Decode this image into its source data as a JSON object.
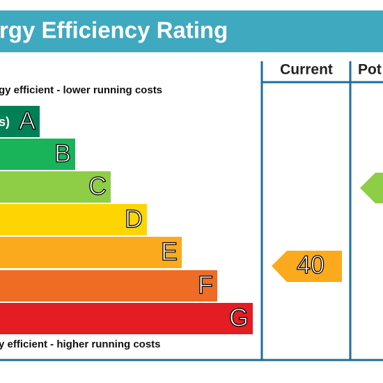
{
  "header": {
    "title": "rgy Efficiency Rating"
  },
  "columns": {
    "current": "Current",
    "potential": "Pot"
  },
  "top_note": "gy efficient - lower running costs",
  "bottom_note": "y efficient - higher running costs",
  "bands": [
    {
      "letter": "A",
      "range": "s)",
      "color": "#008054"
    },
    {
      "letter": "B",
      "color": "#19b459"
    },
    {
      "letter": "C",
      "color": "#8dce46"
    },
    {
      "letter": "D",
      "color": "#ffd500"
    },
    {
      "letter": "E",
      "color": "#fcaa1d"
    },
    {
      "letter": "F",
      "color": "#ef6c24"
    },
    {
      "letter": "G",
      "color": "#e31d23"
    }
  ],
  "current_rating": {
    "value": "40",
    "color": "#fcaa1d"
  },
  "potential_rating": {
    "color": "#8dce46"
  }
}
